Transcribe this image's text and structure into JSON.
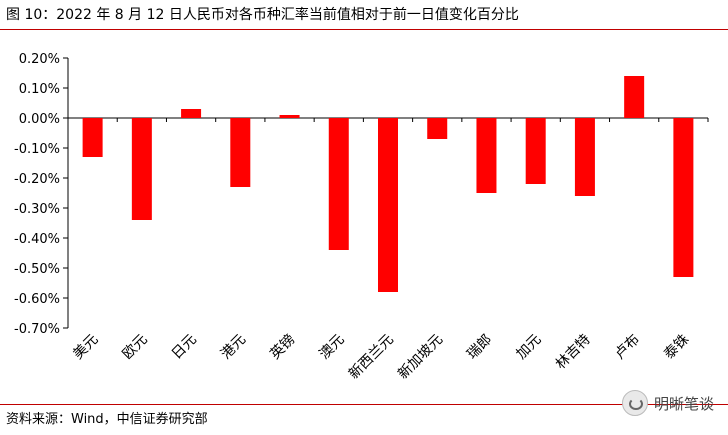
{
  "title": "图 10：2022 年 8 月 12 日人民币对各币种汇率当前值相对于前一日值变化百分比",
  "source": "资料来源：Wind，中信证券研究部",
  "watermark": "明晰笔谈",
  "colors": {
    "bar": "#ff0000",
    "rule": "#c00000"
  },
  "chart_data": {
    "type": "bar",
    "categories": [
      "美元",
      "欧元",
      "日元",
      "港元",
      "英镑",
      "澳元",
      "新西兰元",
      "新加坡元",
      "瑞郎",
      "加元",
      "林吉特",
      "卢布",
      "泰铢"
    ],
    "values": [
      -0.13,
      -0.34,
      0.03,
      -0.23,
      0.01,
      -0.44,
      -0.58,
      -0.07,
      -0.25,
      -0.22,
      -0.26,
      0.14,
      -0.53
    ],
    "yticks": [
      "0.20%",
      "0.10%",
      "0.00%",
      "-0.10%",
      "-0.20%",
      "-0.30%",
      "-0.40%",
      "-0.50%",
      "-0.60%",
      "-0.70%"
    ],
    "ylim": [
      -0.7,
      0.2
    ],
    "unit": "%"
  }
}
